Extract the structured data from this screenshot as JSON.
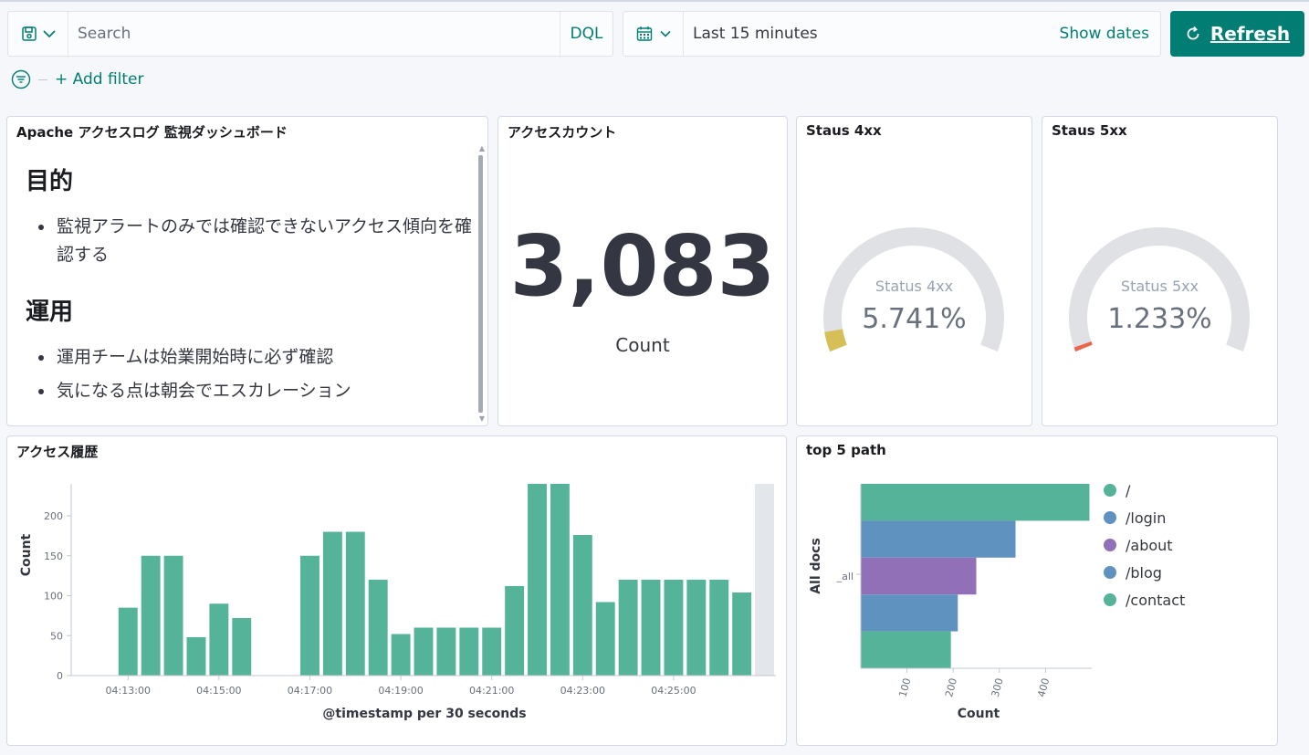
{
  "query": {
    "placeholder": "Search",
    "language": "DQL"
  },
  "time": {
    "range": "Last 15 minutes",
    "show_dates": "Show dates"
  },
  "refresh": {
    "label": "Refresh"
  },
  "filter": {
    "add": "+ Add filter"
  },
  "panels": {
    "markdown": {
      "title": "Apache アクセスログ 監視ダッシュボード",
      "sections": [
        {
          "heading": "目的",
          "items": [
            "監視アラートのみでは確認できないアクセス傾向を確認する"
          ]
        },
        {
          "heading": "運用",
          "items": [
            "運用チームは始業開始時に必ず確認",
            "気になる点は朝会でエスカレーション"
          ]
        }
      ]
    },
    "count": {
      "title": "アクセスカウント",
      "value": "3,083",
      "label": "Count"
    },
    "gauge4xx": {
      "title": "Staus 4xx",
      "label": "Status 4xx",
      "value": "5.741%",
      "percent": 5.741,
      "color": "#d6bf57"
    },
    "gauge5xx": {
      "title": "Staus 5xx",
      "label": "Status 5xx",
      "value": "1.233%",
      "percent": 1.233,
      "color": "#e7664c"
    },
    "history": {
      "title": "アクセス履歴"
    },
    "top5": {
      "title": "top 5 path"
    }
  },
  "chart_data": [
    {
      "type": "bar",
      "title": "アクセス履歴",
      "xlabel": "@timestamp per 30 seconds",
      "ylabel": "Count",
      "ylim": [
        0,
        240
      ],
      "yticks": [
        0,
        50,
        100,
        150,
        200
      ],
      "x_tick_labels": [
        "04:13:00",
        "04:15:00",
        "04:17:00",
        "04:19:00",
        "04:21:00",
        "04:23:00",
        "04:25:00"
      ],
      "color": "#54b399",
      "values": [
        0,
        0,
        85,
        150,
        150,
        48,
        90,
        72,
        0,
        0,
        150,
        180,
        180,
        120,
        52,
        60,
        60,
        60,
        60,
        112,
        240,
        240,
        176,
        92,
        120,
        120,
        120,
        120,
        120,
        104,
        0
      ],
      "grid": false
    },
    {
      "type": "bar",
      "orientation": "horizontal",
      "title": "top 5 path",
      "xlabel": "Count",
      "ylabel": "All docs",
      "category": "_all",
      "xticks": [
        100,
        200,
        300,
        400
      ],
      "legend_position": "right",
      "series": [
        {
          "name": "/",
          "value": 495,
          "color": "#54b399"
        },
        {
          "name": "/login",
          "value": 335,
          "color": "#6092c0"
        },
        {
          "name": "/about",
          "value": 250,
          "color": "#9170b8"
        },
        {
          "name": "/blog",
          "value": 210,
          "color": "#6092c0"
        },
        {
          "name": "/contact",
          "value": 195,
          "color": "#54b399"
        }
      ]
    }
  ]
}
